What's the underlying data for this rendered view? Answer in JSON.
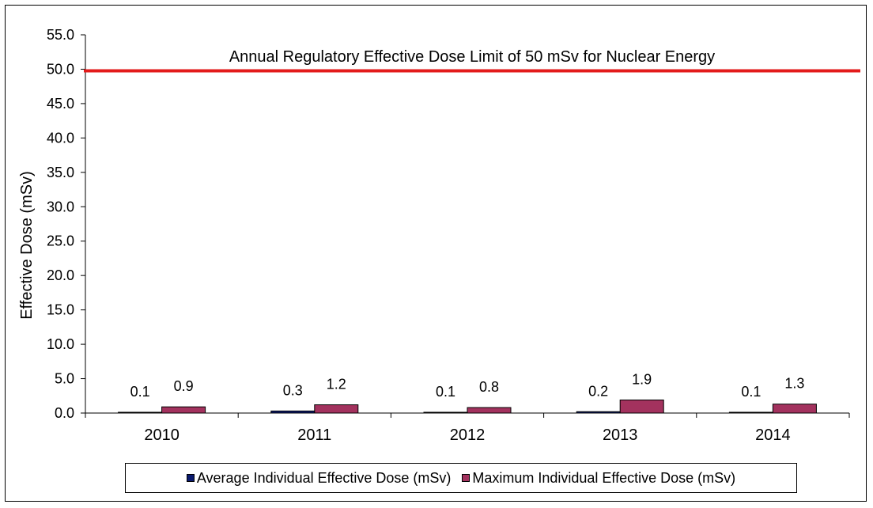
{
  "chart_data": {
    "type": "bar",
    "categories": [
      "2010",
      "2011",
      "2012",
      "2013",
      "2014"
    ],
    "series": [
      {
        "name": "Average Individual Effective Dose (mSv)",
        "values": [
          0.1,
          0.3,
          0.1,
          0.2,
          0.1
        ],
        "labels": [
          "0.1",
          "0.3",
          "0.1",
          "0.2",
          "0.1"
        ],
        "color": "#0a1a6e"
      },
      {
        "name": "Maximum Individual Effective Dose (mSv)",
        "values": [
          0.9,
          1.2,
          0.8,
          1.9,
          1.3
        ],
        "labels": [
          "0.9",
          "1.2",
          "0.8",
          "1.9",
          "1.3"
        ],
        "color": "#a3325e"
      }
    ],
    "ylabel": "Effective Dose (mSv)",
    "xlabel": "",
    "ylim": [
      0,
      55
    ],
    "yticks": [
      "0.0",
      "5.0",
      "10.0",
      "15.0",
      "20.0",
      "25.0",
      "30.0",
      "35.0",
      "40.0",
      "45.0",
      "50.0",
      "55.0"
    ],
    "reference_line": {
      "value": 50,
      "label": "Annual  Regulatory  Effective Dose  Limit of 50 mSv  for Nuclear Energy",
      "color": "#e31b1b"
    },
    "grid": false,
    "legend_position": "bottom"
  }
}
